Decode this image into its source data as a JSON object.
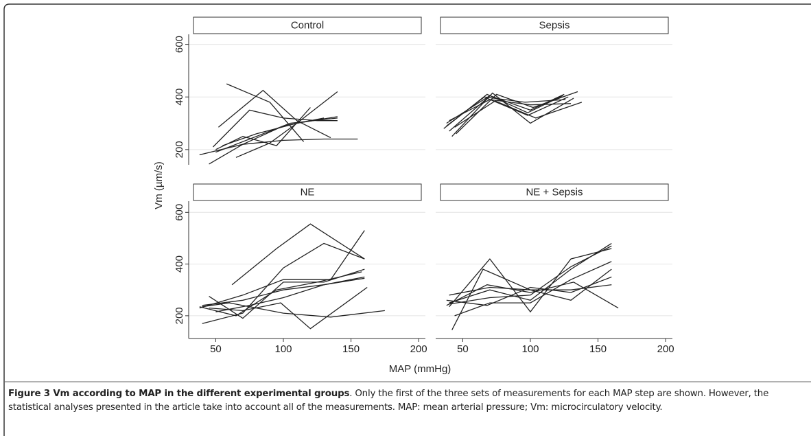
{
  "chart_data": [
    {
      "type": "line",
      "title": "Control",
      "ylim": [
        150,
        625
      ],
      "yticks": [
        200,
        400,
        600
      ],
      "xlim": [
        30,
        205
      ],
      "grid": true,
      "color": "#222222",
      "series": [
        {
          "x": [
            38,
            70,
            100,
            130,
            155
          ],
          "values": [
            180,
            220,
            235,
            240,
            240
          ]
        },
        {
          "x": [
            48,
            75,
            100,
            125,
            140
          ],
          "values": [
            210,
            350,
            320,
            310,
            310
          ]
        },
        {
          "x": [
            52,
            85,
            110,
            135
          ],
          "values": [
            285,
            425,
            310,
            245
          ]
        },
        {
          "x": [
            58,
            90,
            115
          ],
          "values": [
            450,
            380,
            230
          ]
        },
        {
          "x": [
            45,
            70,
            100,
            130
          ],
          "values": [
            145,
            220,
            290,
            320
          ]
        },
        {
          "x": [
            50,
            70,
            95,
            120
          ],
          "values": [
            200,
            250,
            215,
            360
          ]
        },
        {
          "x": [
            65,
            90,
            110,
            140
          ],
          "values": [
            170,
            225,
            300,
            420
          ]
        },
        {
          "x": [
            55,
            80,
            110,
            140
          ],
          "values": [
            215,
            260,
            300,
            325
          ]
        },
        {
          "x": [
            50,
            75,
            105,
            140
          ],
          "values": [
            190,
            240,
            300,
            320
          ]
        }
      ]
    },
    {
      "type": "line",
      "title": "Sepsis",
      "ylim": [
        150,
        625
      ],
      "yticks": [
        200,
        400,
        600
      ],
      "xlim": [
        30,
        205
      ],
      "grid": true,
      "color": "#222222",
      "series": [
        {
          "x": [
            38,
            70,
            100,
            125
          ],
          "values": [
            300,
            405,
            350,
            410
          ]
        },
        {
          "x": [
            40,
            68,
            98,
            128
          ],
          "values": [
            270,
            395,
            330,
            400
          ]
        },
        {
          "x": [
            42,
            72,
            100,
            132
          ],
          "values": [
            250,
            415,
            300,
            395
          ]
        },
        {
          "x": [
            45,
            75,
            102,
            135
          ],
          "values": [
            260,
            410,
            360,
            420
          ]
        },
        {
          "x": [
            38,
            66,
            96,
            126
          ],
          "values": [
            290,
            400,
            380,
            390
          ]
        },
        {
          "x": [
            40,
            70,
            100,
            130
          ],
          "values": [
            310,
            390,
            370,
            375
          ]
        },
        {
          "x": [
            44,
            74,
            104,
            138
          ],
          "values": [
            285,
            385,
            320,
            380
          ]
        },
        {
          "x": [
            36,
            68,
            98,
            124
          ],
          "values": [
            280,
            410,
            340,
            405
          ]
        }
      ]
    },
    {
      "type": "line",
      "title": "NE",
      "ylim": [
        120,
        630
      ],
      "yticks": [
        200,
        400,
        600
      ],
      "xlim": [
        30,
        205
      ],
      "xticks": [
        50,
        100,
        150,
        200
      ],
      "grid": true,
      "color": "#222222",
      "series": [
        {
          "x": [
            40,
            60,
            100,
            135,
            175
          ],
          "values": [
            235,
            250,
            210,
            195,
            220
          ]
        },
        {
          "x": [
            62,
            95,
            120,
            160
          ],
          "values": [
            320,
            460,
            555,
            420
          ]
        },
        {
          "x": [
            40,
            70,
            100,
            130,
            160
          ],
          "values": [
            170,
            210,
            385,
            480,
            420
          ]
        },
        {
          "x": [
            45,
            70,
            100,
            130,
            160
          ],
          "values": [
            275,
            190,
            330,
            330,
            380
          ]
        },
        {
          "x": [
            38,
            70,
            100,
            135,
            160
          ],
          "values": [
            230,
            280,
            340,
            340,
            530
          ]
        },
        {
          "x": [
            40,
            70,
            100,
            130,
            160
          ],
          "values": [
            240,
            260,
            300,
            320,
            345
          ]
        },
        {
          "x": [
            45,
            70,
            98,
            120,
            162
          ],
          "values": [
            230,
            220,
            250,
            150,
            310
          ]
        },
        {
          "x": [
            50,
            75,
            100,
            130,
            160
          ],
          "values": [
            215,
            240,
            270,
            320,
            350
          ]
        },
        {
          "x": [
            38,
            65,
            95,
            125,
            158
          ],
          "values": [
            235,
            200,
            300,
            330,
            370
          ]
        }
      ]
    },
    {
      "type": "line",
      "title": "NE + Sepsis",
      "ylim": [
        120,
        630
      ],
      "yticks": [
        200,
        400,
        600
      ],
      "xlim": [
        30,
        205
      ],
      "xticks": [
        50,
        100,
        150,
        200
      ],
      "grid": true,
      "color": "#222222",
      "series": [
        {
          "x": [
            40,
            70,
            100,
            130,
            160
          ],
          "values": [
            235,
            420,
            215,
            420,
            460
          ]
        },
        {
          "x": [
            42,
            65,
            100,
            130,
            160
          ],
          "values": [
            145,
            380,
            300,
            260,
            380
          ]
        },
        {
          "x": [
            40,
            70,
            100,
            130,
            160
          ],
          "values": [
            250,
            300,
            260,
            380,
            480
          ]
        },
        {
          "x": [
            38,
            68,
            100,
            132,
            165
          ],
          "values": [
            240,
            320,
            290,
            330,
            230
          ]
        },
        {
          "x": [
            40,
            70,
            100,
            130,
            160
          ],
          "values": [
            280,
            310,
            300,
            300,
            320
          ]
        },
        {
          "x": [
            44,
            70,
            100,
            130,
            160
          ],
          "values": [
            200,
            250,
            250,
            340,
            410
          ]
        },
        {
          "x": [
            40,
            70,
            100,
            130,
            160
          ],
          "values": [
            245,
            270,
            280,
            390,
            470
          ]
        },
        {
          "x": [
            38,
            68,
            100,
            130,
            160
          ],
          "values": [
            260,
            240,
            310,
            290,
            350
          ]
        }
      ]
    }
  ],
  "axis_labels": {
    "y": "Vm (µm/s)",
    "x": "MAP (mmHg)"
  },
  "caption": {
    "title": "Figure 3 Vm according to MAP in the different experimental groups",
    "text": ". Only the first of the three sets of measurements for each MAP step are shown. However, the statistical analyses presented in the article take into account all of the measurements. MAP: mean arterial pressure; Vm: microcirculatory velocity."
  }
}
